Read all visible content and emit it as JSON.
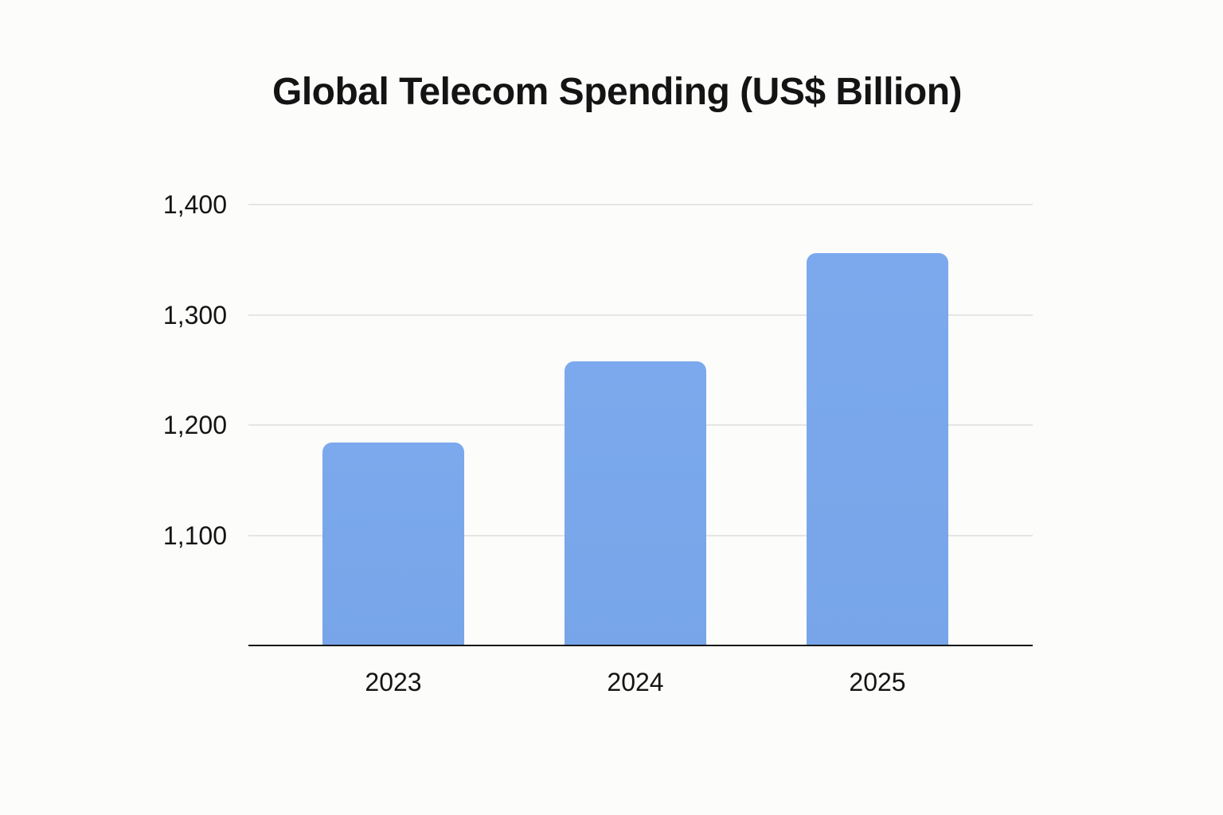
{
  "chart_data": {
    "type": "bar",
    "title": "Global Telecom Spending (US$ Billion)",
    "categories": [
      "2023",
      "2024",
      "2025"
    ],
    "values": [
      1184,
      1258,
      1356
    ],
    "xlabel": "",
    "ylabel": "",
    "ylim": [
      1000,
      1400
    ],
    "yticks": [
      1100,
      1200,
      1300,
      1400
    ],
    "ytick_labels": [
      "1,100",
      "1,200",
      "1,300",
      "1,400"
    ],
    "grid": "horizontal-only",
    "legend_position": "none",
    "colors": {
      "bar_fill": "#79A7EB",
      "gridline": "#E5E5E4",
      "axis_line": "#161616",
      "text": "#141414",
      "background": "#FCFCFB"
    }
  }
}
